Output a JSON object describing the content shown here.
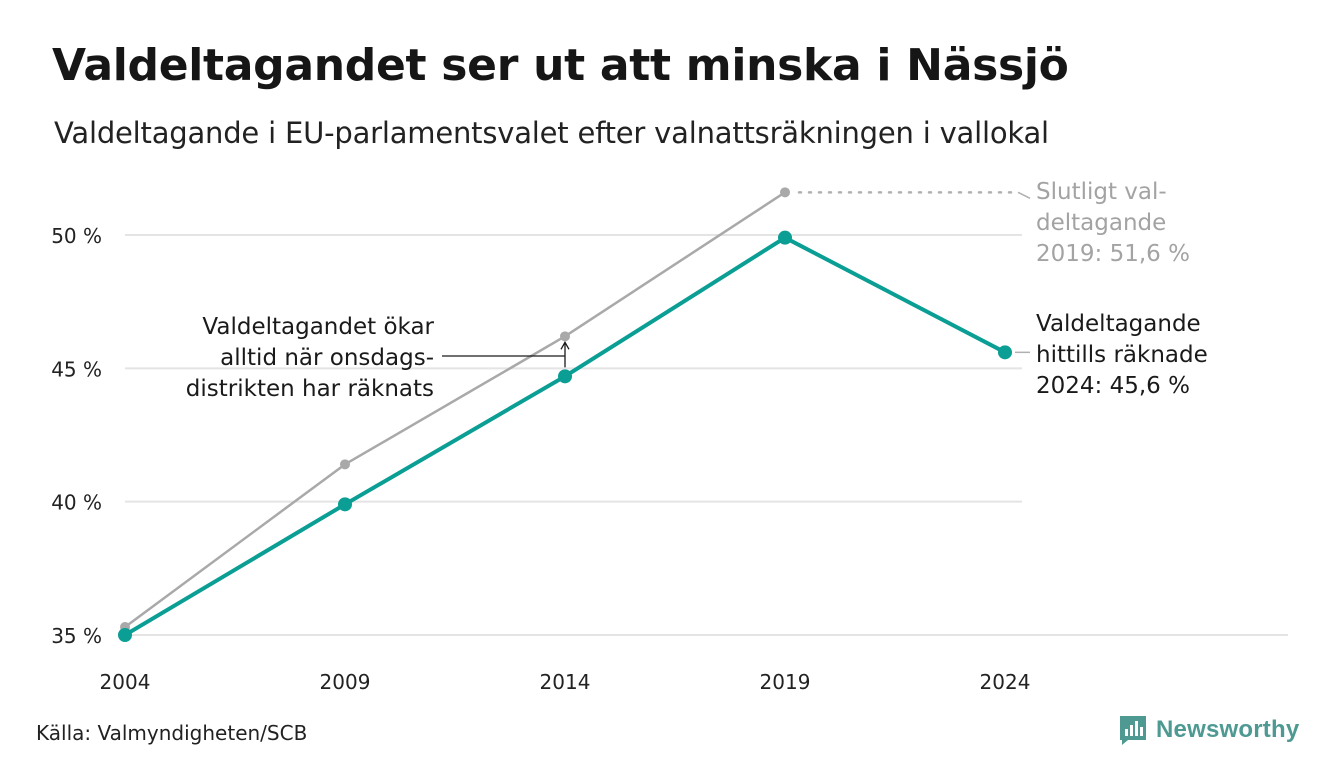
{
  "title": "Valdeltagandet ser ut att minska i Nässjö",
  "subtitle": "Valdeltagande i EU-parlamentsvalet efter valnattsräkningen i vallokal",
  "source": "Källa: Valmyndigheten/SCB",
  "brand": "Newsworthy",
  "colors": {
    "counted": "#0a9e94",
    "final": "#a9a9a9",
    "grid": "#e4e4e4",
    "brand": "#4e9a93"
  },
  "chart_data": {
    "type": "line",
    "categories": [
      "2004",
      "2009",
      "2014",
      "2019",
      "2024"
    ],
    "x": [
      2004,
      2009,
      2014,
      2019,
      2024
    ],
    "series": [
      {
        "key": "counted",
        "values": [
          35.0,
          39.9,
          44.7,
          49.9,
          45.6
        ]
      },
      {
        "key": "final",
        "values": [
          35.3,
          41.4,
          46.2,
          51.6,
          null
        ]
      }
    ],
    "ylim": [
      35,
      52
    ],
    "yticks": [
      35,
      40,
      45,
      50
    ],
    "ytick_labels": [
      "35 %",
      "40 %",
      "45 %",
      "50 %"
    ],
    "grid": true,
    "annotations": {
      "wednesday": [
        "Valdeltagandet ökar",
        "alltid när onsdags-",
        "distrikten har räknats"
      ],
      "final_2019": [
        "Slutligt val-",
        "deltagande",
        "2019: 51,6 %"
      ],
      "counted_2024": [
        "Valdeltagande",
        "hittills räknade",
        "2024: 45,6 %"
      ]
    }
  }
}
